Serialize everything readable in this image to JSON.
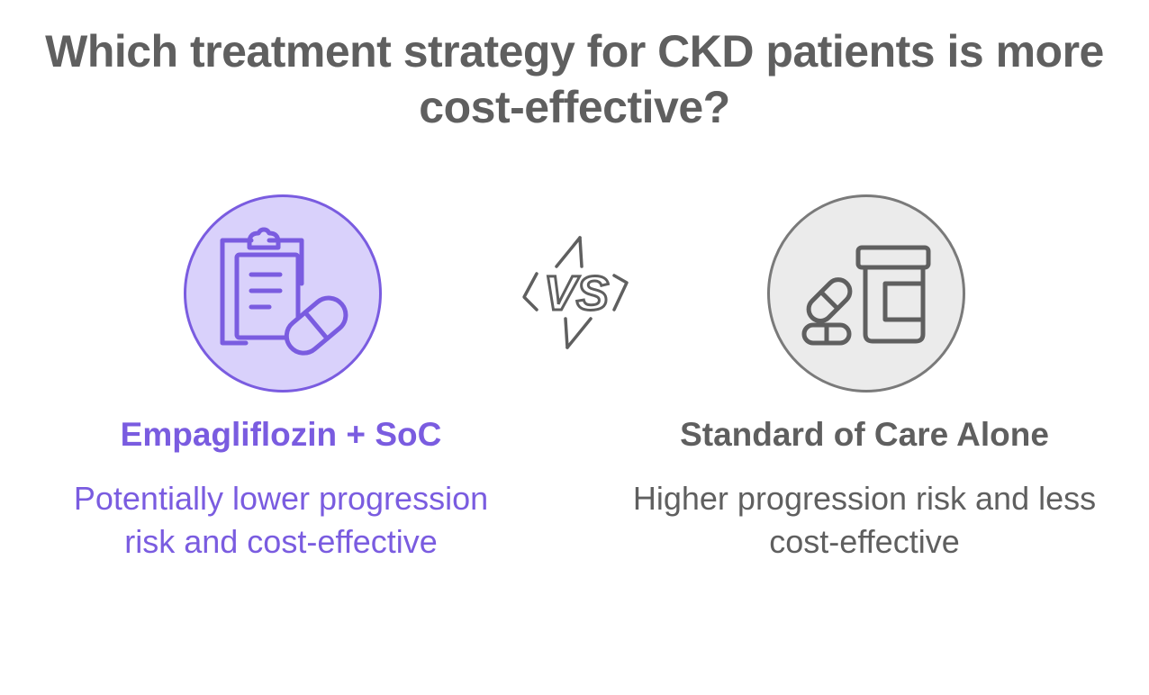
{
  "title": {
    "line1": "Which treatment strategy for CKD patients is more",
    "line2": "cost-effective?"
  },
  "vs_label": "VS",
  "options": [
    {
      "heading": "Empagliflozin + SoC",
      "description": "Potentially lower progression risk and cost-effective",
      "icon": "clipboard-pill-icon",
      "accent_color": "#7a5ce0",
      "fill_color": "#d9d1fb"
    },
    {
      "heading": "Standard of Care Alone",
      "description": "Higher progression risk and less cost-effective",
      "icon": "pill-bottle-icon",
      "accent_color": "#7a7a7a",
      "fill_color": "#ebebeb"
    }
  ]
}
